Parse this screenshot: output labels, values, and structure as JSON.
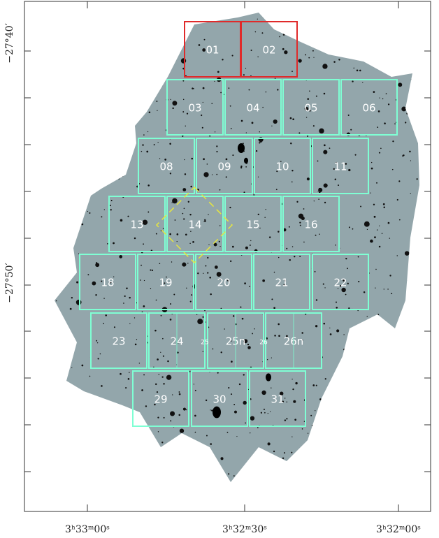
{
  "axes": {
    "y_labels": [
      "−27°40′",
      "−27°50′"
    ],
    "x_labels": [
      "3ʰ33ᵐ00ˢ",
      "3ʰ32ᵐ30ˢ",
      "3ʰ32ᵐ00ˢ"
    ]
  },
  "tiles": [
    "01",
    "02",
    "03",
    "04",
    "05",
    "06",
    "08",
    "09",
    "10",
    "11",
    "13",
    "14",
    "15",
    "16",
    "18",
    "19",
    "20",
    "21",
    "22",
    "23",
    "24",
    "25n",
    "26n",
    "29",
    "30",
    "31"
  ],
  "small_labels": [
    "25",
    "26"
  ]
}
